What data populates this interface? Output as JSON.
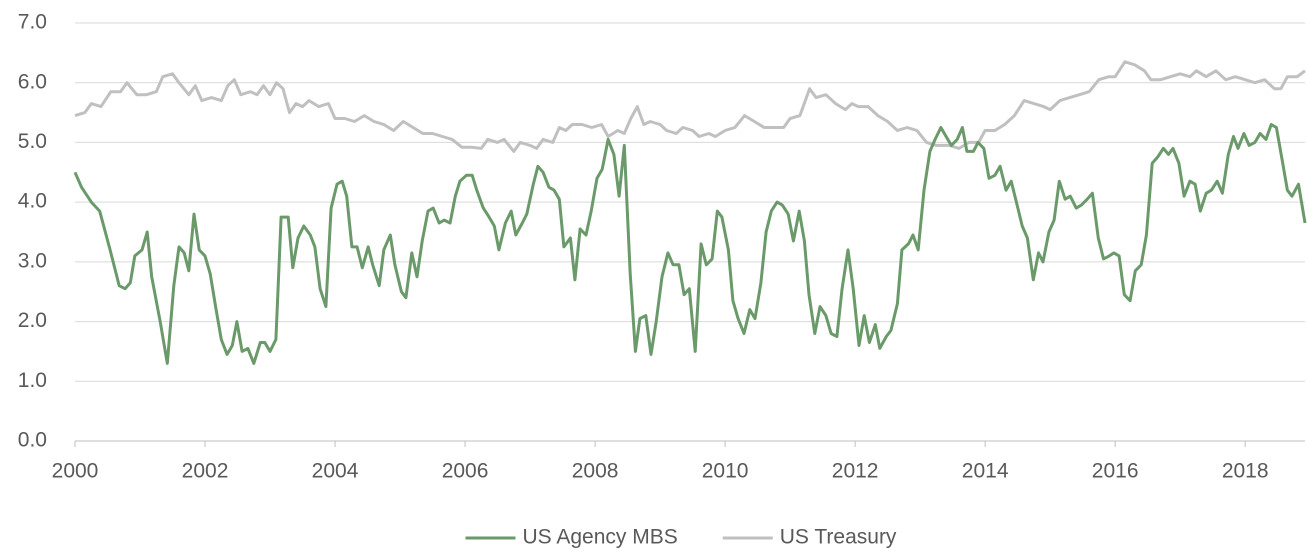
{
  "chart_data": {
    "type": "line",
    "xlim": [
      2000,
      2018.92
    ],
    "xticks": [
      2000,
      2002,
      2004,
      2006,
      2008,
      2010,
      2012,
      2014,
      2016,
      2018
    ],
    "ylim": [
      0,
      7
    ],
    "yticks": [
      {
        "value": 0,
        "label": "0.0"
      },
      {
        "value": 1,
        "label": "1.0"
      },
      {
        "value": 2,
        "label": "2.0"
      },
      {
        "value": 3,
        "label": "3.0"
      },
      {
        "value": 4,
        "label": "4.0"
      },
      {
        "value": 5,
        "label": "5.0"
      },
      {
        "value": 6,
        "label": "6.0"
      },
      {
        "value": 7,
        "label": "7.0"
      }
    ],
    "grid": true,
    "legend": "bottom",
    "series": [
      {
        "name": "US Agency MBS",
        "color": "#6a9a6a",
        "x": [
          2000.0,
          2000.1,
          2000.25,
          2000.38,
          2000.54,
          2000.68,
          2000.77,
          2000.85,
          2000.92,
          2001.03,
          2001.11,
          2001.18,
          2001.31,
          2001.42,
          2001.52,
          2001.6,
          2001.68,
          2001.75,
          2001.83,
          2001.91,
          2002.0,
          2002.08,
          2002.17,
          2002.25,
          2002.34,
          2002.42,
          2002.49,
          2002.57,
          2002.66,
          2002.75,
          2002.85,
          2002.92,
          2003.0,
          2003.09,
          2003.17,
          2003.28,
          2003.35,
          2003.43,
          2003.52,
          2003.62,
          2003.69,
          2003.77,
          2003.86,
          2003.94,
          2004.03,
          2004.11,
          2004.18,
          2004.26,
          2004.34,
          2004.42,
          2004.51,
          2004.58,
          2004.68,
          2004.75,
          2004.85,
          2004.92,
          2005.02,
          2005.09,
          2005.18,
          2005.26,
          2005.34,
          2005.43,
          2005.51,
          2005.6,
          2005.68,
          2005.77,
          2005.85,
          2005.92,
          2006.02,
          2006.11,
          2006.18,
          2006.28,
          2006.37,
          2006.45,
          2006.52,
          2006.62,
          2006.71,
          2006.78,
          2006.88,
          2006.95,
          2007.05,
          2007.12,
          2007.2,
          2007.29,
          2007.37,
          2007.45,
          2007.52,
          2007.62,
          2007.69,
          2007.77,
          2007.86,
          2007.94,
          2008.03,
          2008.11,
          2008.2,
          2008.29,
          2008.37,
          2008.45,
          2008.54,
          2008.62,
          2008.69,
          2008.78,
          2008.86,
          2008.94,
          2009.03,
          2009.12,
          2009.2,
          2009.29,
          2009.37,
          2009.45,
          2009.54,
          2009.63,
          2009.71,
          2009.8,
          2009.88,
          2009.95,
          2010.05,
          2010.12,
          2010.2,
          2010.29,
          2010.38,
          2010.46,
          2010.55,
          2010.63,
          2010.71,
          2010.8,
          2010.88,
          2010.97,
          2011.05,
          2011.14,
          2011.22,
          2011.29,
          2011.38,
          2011.46,
          2011.55,
          2011.63,
          2011.72,
          2011.8,
          2011.89,
          2011.97,
          2012.06,
          2012.14,
          2012.22,
          2012.31,
          2012.38,
          2012.48,
          2012.55,
          2012.65,
          2012.72,
          2012.82,
          2012.89,
          2012.97,
          2013.06,
          2013.15,
          2013.23,
          2013.32,
          2013.4,
          2013.48,
          2013.57,
          2013.65,
          2013.72,
          2013.82,
          2013.89,
          2013.98,
          2014.06,
          2014.15,
          2014.23,
          2014.32,
          2014.4,
          2014.48,
          2014.57,
          2014.65,
          2014.74,
          2014.82,
          2014.89,
          2014.98,
          2015.06,
          2015.14,
          2015.23,
          2015.31,
          2015.4,
          2015.48,
          2015.57,
          2015.65,
          2015.74,
          2015.82,
          2015.91,
          2015.98,
          2016.06,
          2016.14,
          2016.23,
          2016.31,
          2016.4,
          2016.48,
          2016.57,
          2016.65,
          2016.74,
          2016.82,
          2016.89,
          2016.98,
          2017.06,
          2017.15,
          2017.23,
          2017.31,
          2017.4,
          2017.48,
          2017.57,
          2017.65,
          2017.74,
          2017.82,
          2017.89,
          2017.98,
          2018.06,
          2018.15,
          2018.23,
          2018.32,
          2018.4,
          2018.48,
          2018.57,
          2018.65,
          2018.72,
          2018.82,
          2018.92
        ],
        "values": [
          4.5,
          4.25,
          4.0,
          3.85,
          3.2,
          2.6,
          2.55,
          2.65,
          3.1,
          3.2,
          3.5,
          2.75,
          2.0,
          1.3,
          2.6,
          3.25,
          3.15,
          2.85,
          3.8,
          3.2,
          3.1,
          2.8,
          2.2,
          1.7,
          1.45,
          1.6,
          2.0,
          1.5,
          1.55,
          1.3,
          1.65,
          1.65,
          1.5,
          1.7,
          3.75,
          3.75,
          2.9,
          3.4,
          3.6,
          3.45,
          3.25,
          2.55,
          2.25,
          3.9,
          4.3,
          4.35,
          4.1,
          3.25,
          3.25,
          2.9,
          3.25,
          2.95,
          2.6,
          3.2,
          3.45,
          2.95,
          2.5,
          2.4,
          3.15,
          2.75,
          3.35,
          3.85,
          3.9,
          3.65,
          3.7,
          3.65,
          4.1,
          4.35,
          4.45,
          4.45,
          4.2,
          3.9,
          3.75,
          3.6,
          3.2,
          3.65,
          3.85,
          3.45,
          3.65,
          3.8,
          4.3,
          4.6,
          4.5,
          4.25,
          4.2,
          4.05,
          3.25,
          3.4,
          2.7,
          3.55,
          3.45,
          3.85,
          4.4,
          4.55,
          5.05,
          4.8,
          4.1,
          4.95,
          2.8,
          1.5,
          2.05,
          2.1,
          1.45,
          2.0,
          2.75,
          3.15,
          2.95,
          2.95,
          2.45,
          2.55,
          1.5,
          3.3,
          2.95,
          3.05,
          3.85,
          3.75,
          3.2,
          2.35,
          2.05,
          1.8,
          2.2,
          2.05,
          2.65,
          3.5,
          3.85,
          4.0,
          3.95,
          3.8,
          3.35,
          3.85,
          3.35,
          2.45,
          1.8,
          2.25,
          2.1,
          1.8,
          1.75,
          2.55,
          3.2,
          2.55,
          1.6,
          2.1,
          1.65,
          1.95,
          1.55,
          1.75,
          1.85,
          2.3,
          3.2,
          3.3,
          3.45,
          3.2,
          4.2,
          4.85,
          5.05,
          5.25,
          5.1,
          4.95,
          5.05,
          5.25,
          4.85,
          4.85,
          5.0,
          4.9,
          4.4,
          4.45,
          4.6,
          4.2,
          4.35,
          4.0,
          3.6,
          3.4,
          2.7,
          3.15,
          3.0,
          3.5,
          3.7,
          4.35,
          4.05,
          4.1,
          3.9,
          3.95,
          4.05,
          4.15,
          3.4,
          3.05,
          3.1,
          3.15,
          3.1,
          2.45,
          2.35,
          2.85,
          2.95,
          3.45,
          4.65,
          4.75,
          4.9,
          4.8,
          4.9,
          4.65,
          4.1,
          4.35,
          4.3,
          3.85,
          4.15,
          4.2,
          4.35,
          4.15,
          4.8,
          5.1,
          4.9,
          5.15,
          4.95,
          5.0,
          5.15,
          5.05,
          5.3,
          5.25,
          4.7,
          4.2,
          4.1,
          4.3,
          3.65
        ]
      },
      {
        "name": "US Treasury",
        "color": "#c0c0c0",
        "x": [
          2000.0,
          2000.15,
          2000.25,
          2000.4,
          2000.55,
          2000.7,
          2000.8,
          2000.95,
          2001.1,
          2001.25,
          2001.35,
          2001.5,
          2001.6,
          2001.75,
          2001.85,
          2001.95,
          2002.1,
          2002.25,
          2002.35,
          2002.45,
          2002.55,
          2002.7,
          2002.8,
          2002.9,
          2003.0,
          2003.1,
          2003.2,
          2003.3,
          2003.4,
          2003.5,
          2003.6,
          2003.75,
          2003.9,
          2004.0,
          2004.15,
          2004.3,
          2004.45,
          2004.6,
          2004.75,
          2004.9,
          2005.05,
          2005.2,
          2005.35,
          2005.5,
          2005.65,
          2005.8,
          2005.95,
          2006.1,
          2006.25,
          2006.35,
          2006.5,
          2006.6,
          2006.75,
          2006.85,
          2007.0,
          2007.1,
          2007.2,
          2007.35,
          2007.45,
          2007.55,
          2007.65,
          2007.8,
          2007.95,
          2008.1,
          2008.2,
          2008.35,
          2008.45,
          2008.55,
          2008.65,
          2008.75,
          2008.85,
          2009.0,
          2009.1,
          2009.25,
          2009.35,
          2009.5,
          2009.6,
          2009.75,
          2009.85,
          2010.0,
          2010.15,
          2010.3,
          2010.45,
          2010.6,
          2010.75,
          2010.9,
          2011.0,
          2011.15,
          2011.3,
          2011.4,
          2011.55,
          2011.7,
          2011.85,
          2011.95,
          2012.05,
          2012.2,
          2012.35,
          2012.5,
          2012.65,
          2012.8,
          2012.95,
          2013.1,
          2013.25,
          2013.45,
          2013.6,
          2013.75,
          2013.9,
          2014.0,
          2014.15,
          2014.3,
          2014.45,
          2014.6,
          2014.75,
          2014.9,
          2015.0,
          2015.15,
          2015.3,
          2015.45,
          2015.6,
          2015.75,
          2015.9,
          2016.0,
          2016.15,
          2016.3,
          2016.45,
          2016.55,
          2016.7,
          2016.85,
          2017.0,
          2017.15,
          2017.25,
          2017.4,
          2017.55,
          2017.7,
          2017.85,
          2018.0,
          2018.15,
          2018.3,
          2018.45,
          2018.55,
          2018.65,
          2018.8,
          2018.92
        ],
        "values": [
          5.45,
          5.5,
          5.65,
          5.6,
          5.85,
          5.85,
          6.0,
          5.8,
          5.8,
          5.85,
          6.1,
          6.15,
          6.0,
          5.8,
          5.95,
          5.7,
          5.75,
          5.7,
          5.95,
          6.05,
          5.8,
          5.85,
          5.8,
          5.95,
          5.8,
          6.0,
          5.9,
          5.5,
          5.65,
          5.6,
          5.7,
          5.6,
          5.65,
          5.4,
          5.4,
          5.35,
          5.45,
          5.35,
          5.3,
          5.2,
          5.35,
          5.25,
          5.15,
          5.15,
          5.1,
          5.05,
          4.92,
          4.92,
          4.9,
          5.05,
          5.0,
          5.05,
          4.85,
          5.0,
          4.95,
          4.9,
          5.05,
          5.0,
          5.25,
          5.2,
          5.3,
          5.3,
          5.25,
          5.3,
          5.1,
          5.2,
          5.15,
          5.4,
          5.6,
          5.3,
          5.35,
          5.3,
          5.2,
          5.15,
          5.25,
          5.2,
          5.1,
          5.15,
          5.1,
          5.2,
          5.25,
          5.45,
          5.35,
          5.25,
          5.25,
          5.25,
          5.4,
          5.45,
          5.9,
          5.75,
          5.8,
          5.65,
          5.55,
          5.65,
          5.6,
          5.6,
          5.45,
          5.35,
          5.2,
          5.25,
          5.2,
          5.0,
          4.95,
          4.95,
          4.9,
          5.0,
          5.0,
          5.2,
          5.2,
          5.3,
          5.45,
          5.7,
          5.65,
          5.6,
          5.55,
          5.7,
          5.75,
          5.8,
          5.85,
          6.05,
          6.1,
          6.1,
          6.35,
          6.3,
          6.2,
          6.05,
          6.05,
          6.1,
          6.15,
          6.1,
          6.2,
          6.1,
          6.2,
          6.05,
          6.1,
          6.05,
          6.0,
          6.05,
          5.9,
          5.9,
          6.1,
          6.1,
          6.2
        ]
      }
    ]
  }
}
